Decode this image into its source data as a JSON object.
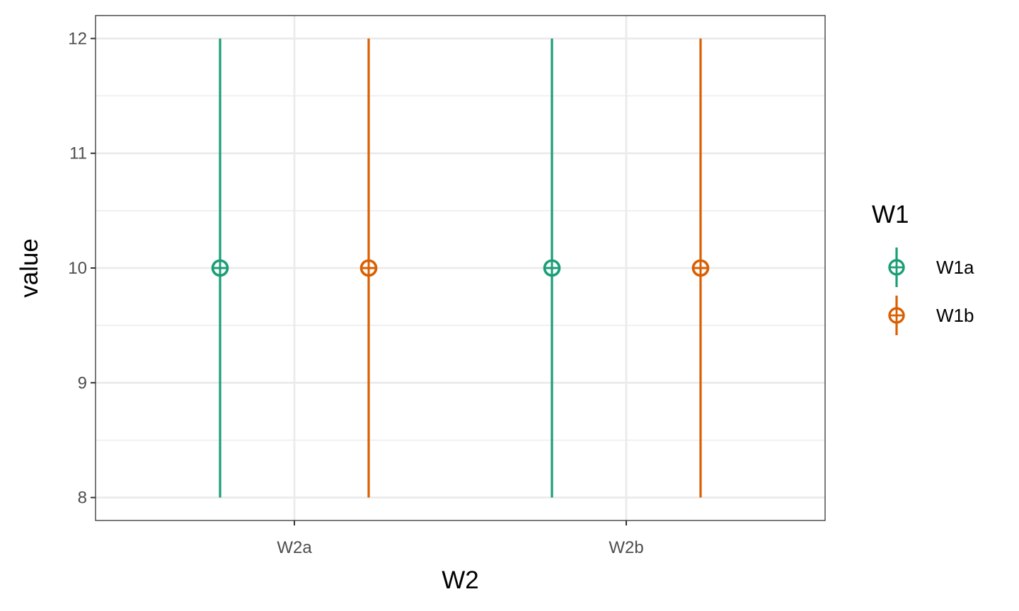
{
  "chart_data": {
    "type": "scatter",
    "xlabel": "W2",
    "ylabel": "value",
    "categories": [
      "W2a",
      "W2b"
    ],
    "ylim": [
      7.8,
      12.2
    ],
    "y_ticks": [
      8,
      9,
      10,
      11,
      12
    ],
    "y_tick_labels": [
      "8",
      "9",
      "10",
      "11",
      "12"
    ],
    "grid": true,
    "legend": {
      "title": "W1",
      "position": "right"
    },
    "series": [
      {
        "name": "W1a",
        "color": "#1b9e77",
        "points": [
          {
            "x": "W2a",
            "y": 10,
            "ymin": 8,
            "ymax": 12
          },
          {
            "x": "W2b",
            "y": 10,
            "ymin": 8,
            "ymax": 12
          }
        ]
      },
      {
        "name": "W1b",
        "color": "#d95f02",
        "points": [
          {
            "x": "W2a",
            "y": 10,
            "ymin": 8,
            "ymax": 12
          },
          {
            "x": "W2b",
            "y": 10,
            "ymin": 8,
            "ymax": 12
          }
        ]
      }
    ]
  }
}
